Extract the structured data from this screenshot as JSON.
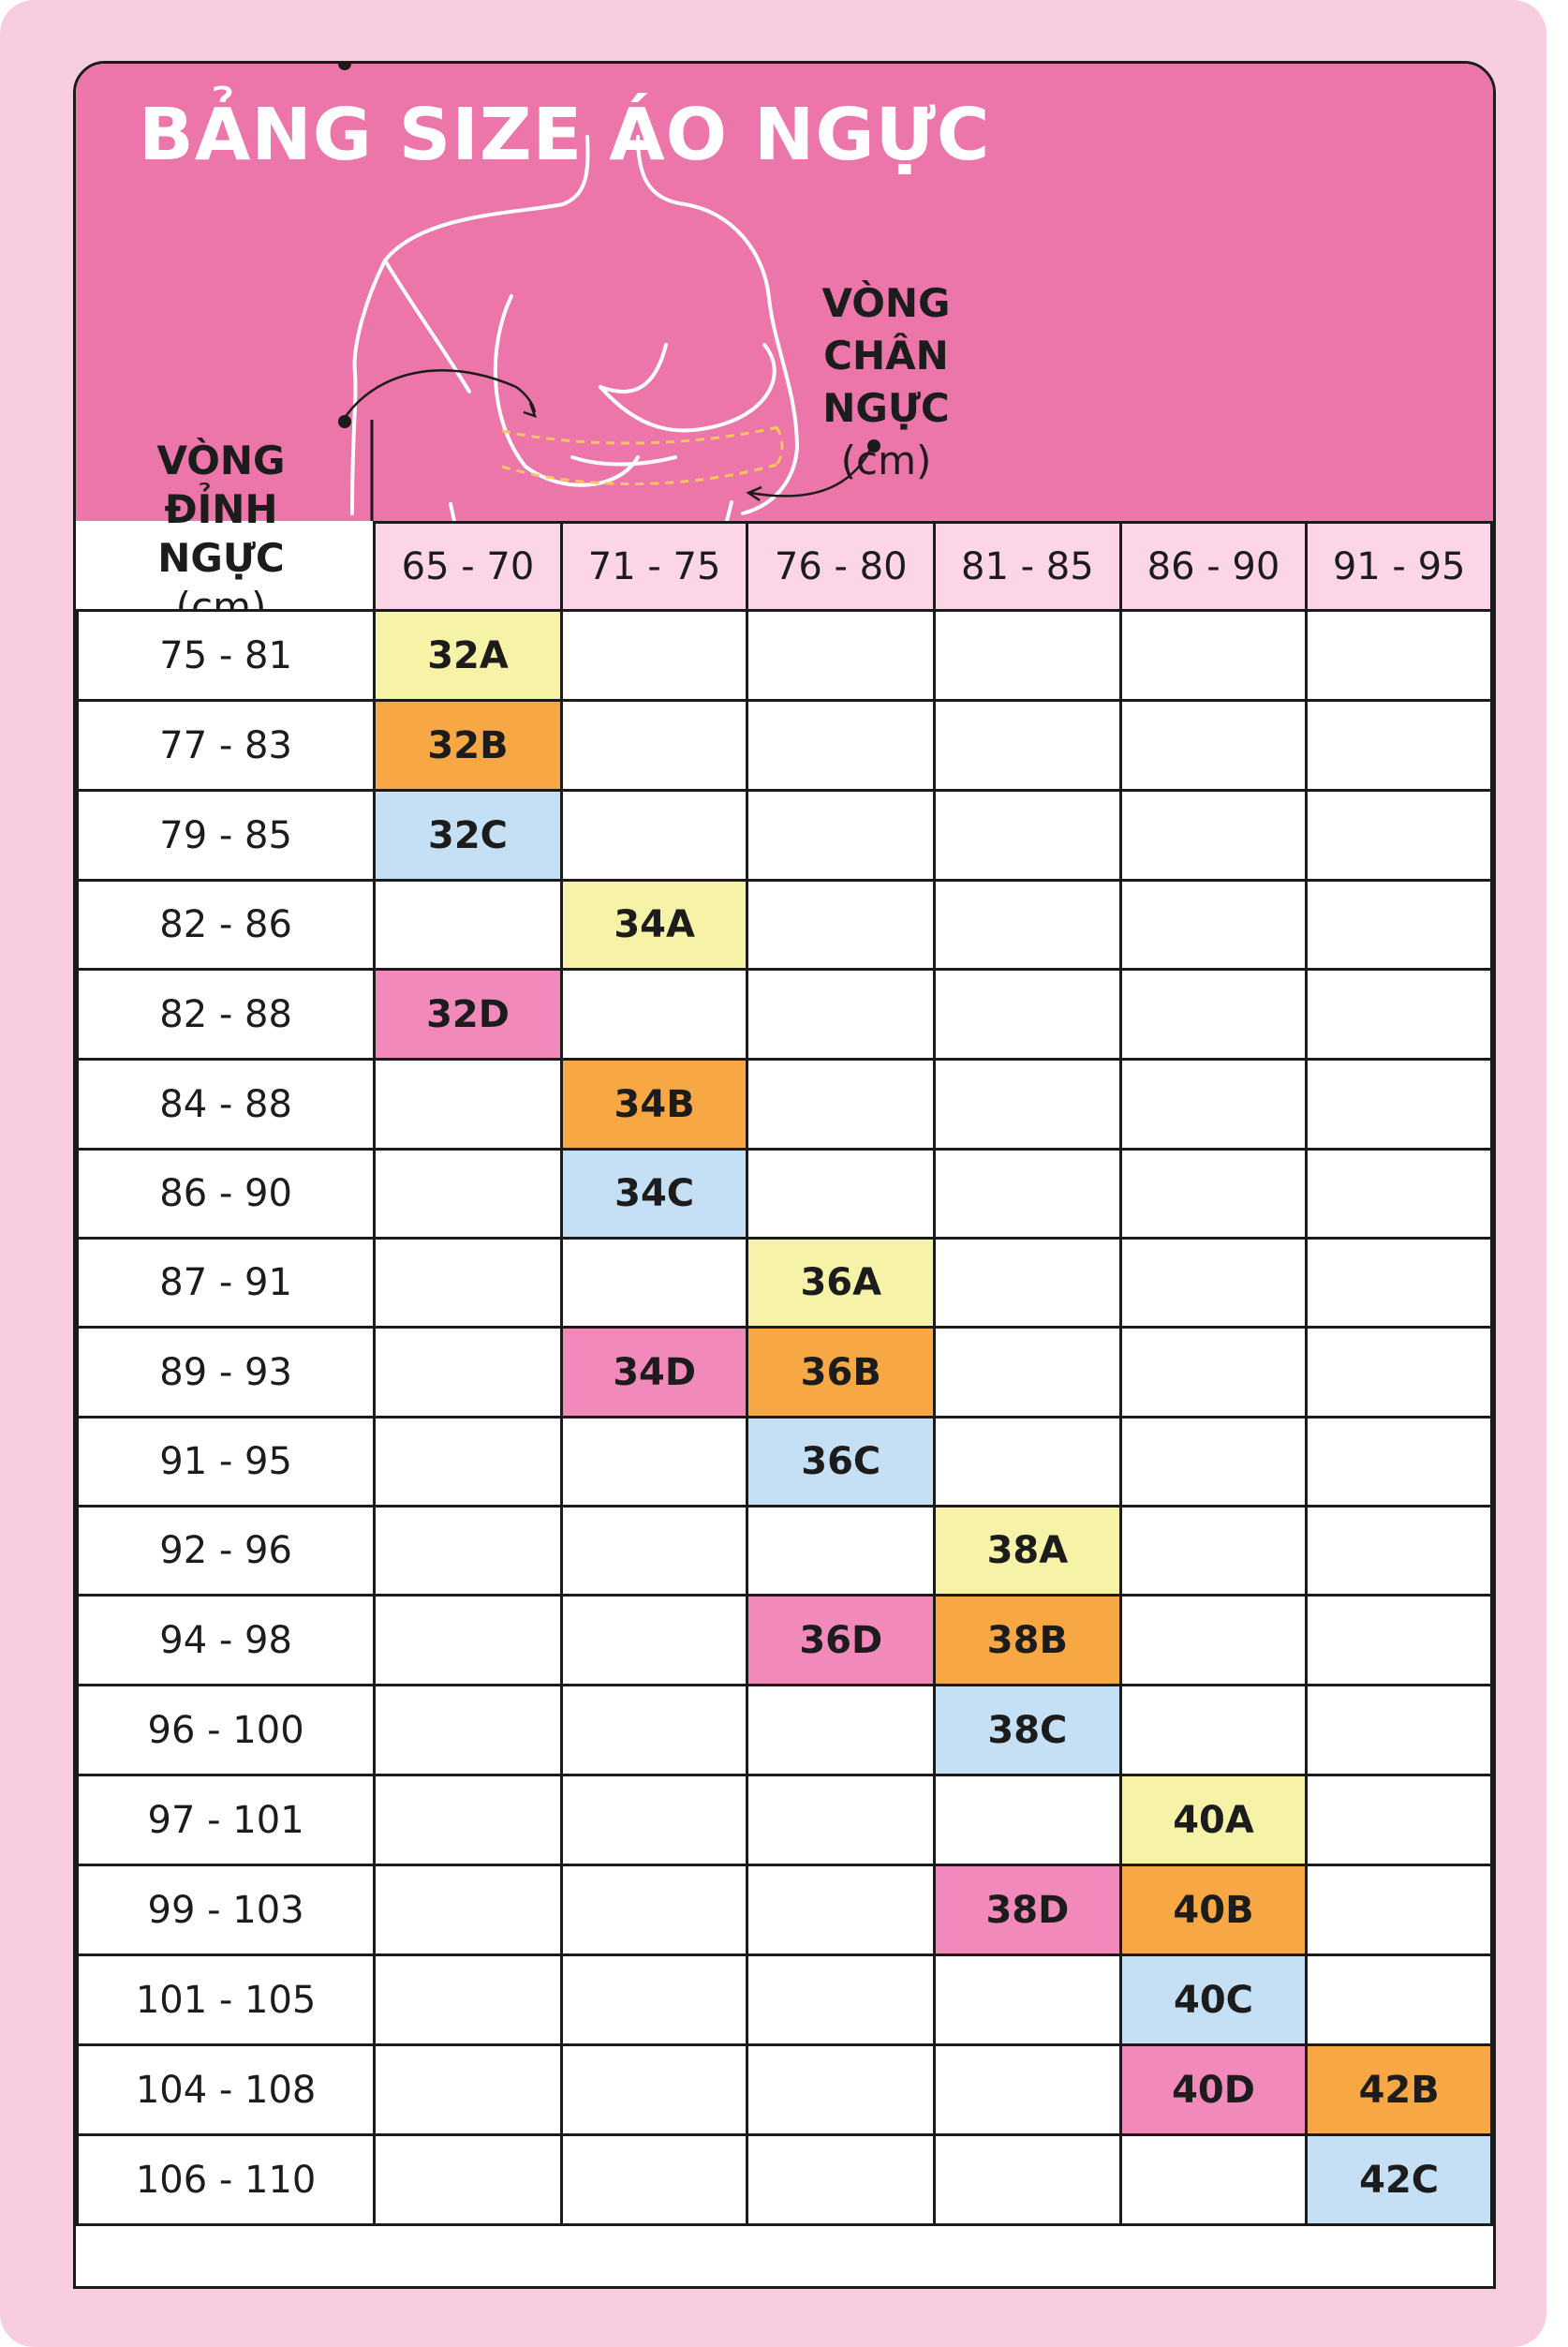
{
  "title": "BẢNG SIZE ÁO NGỰC",
  "row_axis": {
    "line1": "VÒNG",
    "line2": "ĐỈNH NGỰC",
    "unit": "(cm)"
  },
  "col_axis": {
    "line1": "VÒNG",
    "line2": "CHÂN NGỰC",
    "unit": "(cm)"
  },
  "columns": [
    "65 - 70",
    "71 - 75",
    "76 - 80",
    "81 - 85",
    "86 - 90",
    "91 - 95"
  ],
  "colors": {
    "A": "#f6f3a8",
    "B": "#f7a844",
    "C": "#c5e0f4",
    "D": "#f289bb",
    "header": "#ec75aa",
    "frame": "#f9cde0"
  },
  "rows": [
    {
      "label": "75 - 81",
      "cells": [
        "32A",
        "",
        "",
        "",
        "",
        ""
      ]
    },
    {
      "label": "77 - 83",
      "cells": [
        "32B",
        "",
        "",
        "",
        "",
        ""
      ]
    },
    {
      "label": "79 - 85",
      "cells": [
        "32C",
        "",
        "",
        "",
        "",
        ""
      ]
    },
    {
      "label": "82 - 86",
      "cells": [
        "",
        "34A",
        "",
        "",
        "",
        ""
      ]
    },
    {
      "label": "82 - 88",
      "cells": [
        "32D",
        "",
        "",
        "",
        "",
        ""
      ]
    },
    {
      "label": "84 - 88",
      "cells": [
        "",
        "34B",
        "",
        "",
        "",
        ""
      ]
    },
    {
      "label": "86 - 90",
      "cells": [
        "",
        "34C",
        "",
        "",
        "",
        ""
      ]
    },
    {
      "label": "87 - 91",
      "cells": [
        "",
        "",
        "36A",
        "",
        "",
        ""
      ]
    },
    {
      "label": "89 - 93",
      "cells": [
        "",
        "34D",
        "36B",
        "",
        "",
        ""
      ]
    },
    {
      "label": "91 - 95",
      "cells": [
        "",
        "",
        "36C",
        "",
        "",
        ""
      ]
    },
    {
      "label": "92 - 96",
      "cells": [
        "",
        "",
        "",
        "38A",
        "",
        ""
      ]
    },
    {
      "label": "94 - 98",
      "cells": [
        "",
        "",
        "36D",
        "38B",
        "",
        ""
      ]
    },
    {
      "label": "96 - 100",
      "cells": [
        "",
        "",
        "",
        "38C",
        "",
        ""
      ]
    },
    {
      "label": "97 - 101",
      "cells": [
        "",
        "",
        "",
        "",
        "40A",
        ""
      ]
    },
    {
      "label": "99 - 103",
      "cells": [
        "",
        "",
        "",
        "38D",
        "40B",
        ""
      ]
    },
    {
      "label": "101 - 105",
      "cells": [
        "",
        "",
        "",
        "",
        "40C",
        ""
      ]
    },
    {
      "label": "104 - 108",
      "cells": [
        "",
        "",
        "",
        "",
        "40D",
        "42B"
      ]
    },
    {
      "label": "106 - 110",
      "cells": [
        "",
        "",
        "",
        "",
        "",
        "42C"
      ]
    }
  ]
}
